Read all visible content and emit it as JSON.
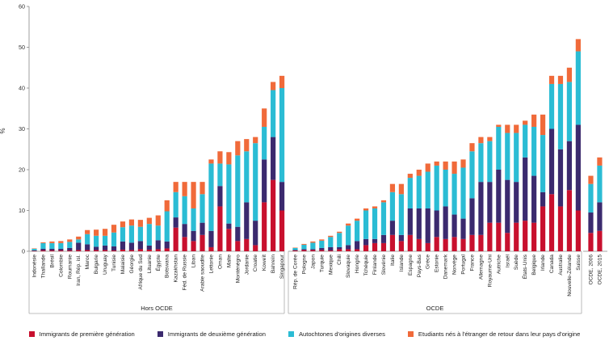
{
  "chart_data": {
    "type": "bar",
    "stacked": true,
    "ylabel": "%",
    "ylim": [
      0,
      60
    ],
    "yticks": [
      0,
      10,
      20,
      30,
      40,
      50,
      60
    ],
    "grid": false,
    "legend_position": "bottom",
    "colors": {
      "first_gen": "#c8102e",
      "second_gen": "#3b2a6e",
      "autochtones": "#2bbcd4",
      "etudiants": "#f06a3a"
    },
    "series": [
      {
        "key": "first_gen",
        "name": "Immigrants de première génération"
      },
      {
        "key": "second_gen",
        "name": "Immigrants de deuxième génération"
      },
      {
        "key": "autochtones",
        "name": "Autochtones d'origines diverses"
      },
      {
        "key": "etudiants",
        "name": "Etudiants nés à l'étranger de retour dans leur pays d'origine"
      }
    ],
    "groups": [
      {
        "label": "Hors OCDE",
        "categories": [
          "Indonésie",
          "Thaïlande",
          "Brésil",
          "Colombie",
          "Roumanie",
          "Iran, Rép. isl.",
          "Maroc",
          "Bulgarie",
          "Uruguay",
          "Tunisie",
          "Malaisie",
          "Géorgie",
          "Afrique du Sud",
          "Lituanie",
          "Égypte",
          "Botswana",
          "Kazakhstan",
          "Féd. de Russie",
          "Liban",
          "Arabie saoudite",
          "Lettonie",
          "Oman",
          "Malte",
          "Monténégro",
          "Jordanie",
          "Croatie",
          "Koweït",
          "Bahreïn",
          "Singapour"
        ],
        "first_gen": [
          0.1,
          0.2,
          0.2,
          0.2,
          0.2,
          0.3,
          0.3,
          0.3,
          0.3,
          0.2,
          0.4,
          0.3,
          0.5,
          0.4,
          0.5,
          0.7,
          5.8,
          3.5,
          2.5,
          4.0,
          1.0,
          11.0,
          5.5,
          2.5,
          3.0,
          1.5,
          12.0,
          17.5,
          10.0
        ],
        "second_gen": [
          0.1,
          0.4,
          0.4,
          0.4,
          0.6,
          1.8,
          1.4,
          0.8,
          1.1,
          1.0,
          2.0,
          1.8,
          2.0,
          1.0,
          2.2,
          1.7,
          2.5,
          3.2,
          2.5,
          3.0,
          4.0,
          5.0,
          1.3,
          3.5,
          9.0,
          6.0,
          10.5,
          10.5,
          7.0
        ],
        "autochtones": [
          0.4,
          1.4,
          1.4,
          1.4,
          1.5,
          0.8,
          2.5,
          2.7,
          2.4,
          3.4,
          3.5,
          4.2,
          3.5,
          5.3,
          3.6,
          7.4,
          6.2,
          6.8,
          5.5,
          7.0,
          16.5,
          5.5,
          14.5,
          17.5,
          12.5,
          19.0,
          8.0,
          11.5,
          23.0
        ],
        "etudiants": [
          0.1,
          0.2,
          0.4,
          0.5,
          0.6,
          0.7,
          1.0,
          1.5,
          1.7,
          1.9,
          1.4,
          1.5,
          1.7,
          1.5,
          2.5,
          2.7,
          2.5,
          3.5,
          6.5,
          3.0,
          1.0,
          3.0,
          3.0,
          3.5,
          3.0,
          1.5,
          4.5,
          2.0,
          3.0
        ]
      },
      {
        "label": "OCDE",
        "categories": [
          "Rép. de Corée",
          "Pologne",
          "Japon",
          "Turquie",
          "Mexique",
          "Chili",
          "Slovaquie",
          "Hongrie",
          "Tchéquie",
          "Finlande",
          "Slovénie",
          "Italie",
          "Islande",
          "Espagne",
          "Pays-Bas",
          "Grèce",
          "Estonie",
          "Danemark",
          "Norvège",
          "Portugal",
          "France",
          "Allemagne",
          "Royaume-Uni",
          "Autriche",
          "Israël",
          "Suède",
          "États-Unis",
          "Belgique",
          "Irlande",
          "Canada",
          "Australie",
          "Nouvelle-Zélande",
          "Suisse"
        ],
        "first_gen": [
          0.2,
          0.3,
          0.3,
          0.3,
          0.2,
          0.5,
          0.5,
          0.5,
          1.5,
          2.0,
          2.0,
          4.0,
          2.5,
          4.0,
          3.0,
          2.0,
          3.5,
          3.0,
          3.5,
          3.0,
          4.0,
          4.0,
          7.0,
          7.0,
          4.5,
          7.0,
          7.5,
          7.0,
          11.0,
          14.0,
          11.0,
          15.0,
          10.0
        ],
        "second_gen": [
          0.1,
          0.2,
          0.2,
          0.5,
          0.8,
          0.5,
          1.0,
          2.0,
          1.5,
          1.0,
          2.0,
          3.5,
          1.5,
          6.5,
          7.5,
          8.5,
          6.5,
          8.0,
          5.5,
          5.0,
          9.0,
          13.0,
          10.0,
          13.0,
          13.0,
          10.0,
          15.5,
          11.5,
          3.5,
          16.0,
          14.0,
          12.0,
          21.0
        ],
        "autochtones": [
          0.5,
          1.1,
          1.6,
          1.8,
          2.5,
          3.5,
          4.8,
          5.0,
          7.0,
          7.5,
          8.0,
          7.0,
          10.0,
          7.5,
          8.0,
          9.0,
          11.0,
          9.0,
          10.0,
          12.5,
          11.5,
          9.5,
          10.0,
          10.5,
          11.5,
          12.0,
          8.0,
          12.0,
          14.0,
          11.0,
          16.0,
          14.5,
          18.0
        ],
        "etudiants": [
          0.1,
          0.2,
          0.3,
          0.3,
          0.3,
          0.3,
          0.5,
          0.5,
          0.5,
          0.5,
          0.5,
          2.0,
          2.5,
          1.0,
          1.5,
          2.0,
          1.0,
          2.0,
          3.0,
          2.0,
          2.0,
          1.5,
          1.0,
          0.5,
          2.0,
          2.0,
          1.0,
          3.0,
          5.0,
          2.0,
          2.0,
          3.5,
          3.0
        ]
      },
      {
        "label": "",
        "categories": [
          "OCDE, 2006",
          "OCDE, 2015"
        ],
        "first_gen": [
          4.5,
          5.0
        ],
        "second_gen": [
          5.0,
          7.0
        ],
        "autochtones": [
          7.0,
          9.0
        ],
        "etudiants": [
          2.0,
          2.0
        ]
      }
    ]
  }
}
